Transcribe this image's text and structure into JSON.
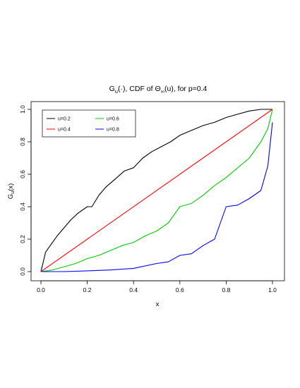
{
  "chart_data": {
    "type": "line",
    "title": {
      "prefix": "G",
      "prefix_sub": "u",
      "middle": "(·), CDF of Θ",
      "middle_sub": "∞",
      "suffix": "(u), for p=0.4"
    },
    "xlabel": "x",
    "ylabel": {
      "main": "G",
      "sub": "u",
      "rest": "(x)"
    },
    "xlim": [
      0,
      1
    ],
    "ylim": [
      0,
      1
    ],
    "x_ticks": [
      "0.0",
      "0.2",
      "0.4",
      "0.6",
      "0.8",
      "1.0"
    ],
    "y_ticks": [
      "0.0",
      "0.2",
      "0.4",
      "0.6",
      "0.8",
      "1.0"
    ],
    "legend_position": "top-left",
    "series": [
      {
        "name": "u=0.2",
        "color": "#000000",
        "x": [
          0,
          0.01,
          0.02,
          0.04,
          0.07,
          0.1,
          0.13,
          0.16,
          0.2,
          0.22,
          0.25,
          0.28,
          0.32,
          0.36,
          0.4,
          0.44,
          0.48,
          0.52,
          0.56,
          0.6,
          0.65,
          0.7,
          0.75,
          0.8,
          0.85,
          0.9,
          0.95,
          1.0
        ],
        "y": [
          0,
          0.06,
          0.12,
          0.16,
          0.22,
          0.27,
          0.32,
          0.36,
          0.4,
          0.4,
          0.47,
          0.52,
          0.57,
          0.62,
          0.64,
          0.7,
          0.74,
          0.77,
          0.8,
          0.84,
          0.87,
          0.9,
          0.92,
          0.95,
          0.97,
          0.99,
          1.0,
          1.0
        ]
      },
      {
        "name": "u=0.4",
        "color": "#ff0000",
        "x": [
          0,
          1
        ],
        "y": [
          0,
          1
        ]
      },
      {
        "name": "u=0.6",
        "color": "#00cc00",
        "x": [
          0,
          0.05,
          0.1,
          0.15,
          0.2,
          0.25,
          0.3,
          0.35,
          0.4,
          0.45,
          0.5,
          0.55,
          0.6,
          0.65,
          0.7,
          0.75,
          0.8,
          0.85,
          0.9,
          0.95,
          0.98,
          1.0
        ],
        "y": [
          0,
          0.01,
          0.03,
          0.05,
          0.08,
          0.1,
          0.13,
          0.16,
          0.18,
          0.22,
          0.25,
          0.3,
          0.4,
          0.42,
          0.47,
          0.53,
          0.58,
          0.64,
          0.7,
          0.8,
          0.88,
          1.0
        ]
      },
      {
        "name": "u=0.8",
        "color": "#0000ff",
        "x": [
          0,
          0.1,
          0.2,
          0.3,
          0.4,
          0.5,
          0.55,
          0.6,
          0.65,
          0.7,
          0.75,
          0.8,
          0.85,
          0.9,
          0.95,
          0.98,
          1.0
        ],
        "y": [
          0,
          0.0,
          0.005,
          0.01,
          0.02,
          0.05,
          0.06,
          0.1,
          0.11,
          0.16,
          0.2,
          0.4,
          0.41,
          0.45,
          0.5,
          0.65,
          0.92
        ]
      }
    ]
  }
}
